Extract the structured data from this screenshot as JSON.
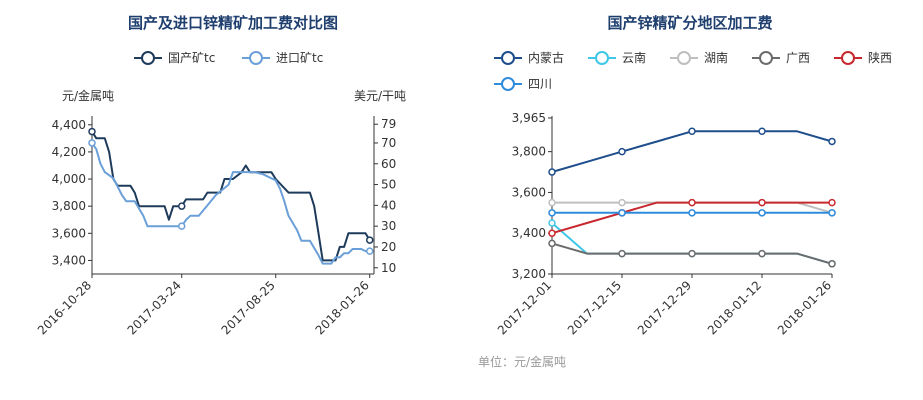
{
  "chart_data": [
    {
      "type": "line",
      "title": "国产及进口锌精矿加工费对比图",
      "ylabel": "元/金属吨",
      "y2label": "美元/干吨",
      "ylim": [
        3300,
        4450
      ],
      "y2lim": [
        7,
        82
      ],
      "yticks": [
        3400,
        3600,
        3800,
        4000,
        4200,
        4400
      ],
      "ytick_labels": [
        "3,400",
        "3,600",
        "3,800",
        "4,000",
        "4,200",
        "4,400"
      ],
      "y2ticks": [
        10,
        20,
        30,
        40,
        50,
        60,
        70,
        79
      ],
      "xlim": [
        "2016-10-28",
        "2018-02-02"
      ],
      "xticks": [
        "2016-10-28",
        "2017-03-24",
        "2017-08-25",
        "2018-01-26"
      ],
      "grid": false,
      "legend_position": "top-center",
      "series": [
        {
          "name": "国产矿tc",
          "color": "#1f3b5c",
          "axis": "left",
          "points": [
            [
              "2016-10-28",
              4350
            ],
            [
              "2016-11-04",
              4300
            ],
            [
              "2016-11-18",
              4300
            ],
            [
              "2016-11-25",
              4200
            ],
            [
              "2016-12-02",
              4000
            ],
            [
              "2016-12-09",
              3950
            ],
            [
              "2016-12-30",
              3950
            ],
            [
              "2017-01-06",
              3900
            ],
            [
              "2017-01-13",
              3800
            ],
            [
              "2017-02-24",
              3800
            ],
            [
              "2017-03-03",
              3700
            ],
            [
              "2017-03-10",
              3800
            ],
            [
              "2017-03-24",
              3800
            ],
            [
              "2017-03-31",
              3850
            ],
            [
              "2017-04-28",
              3850
            ],
            [
              "2017-05-05",
              3900
            ],
            [
              "2017-05-26",
              3900
            ],
            [
              "2017-06-02",
              4000
            ],
            [
              "2017-06-16",
              4000
            ],
            [
              "2017-06-30",
              4050
            ],
            [
              "2017-07-07",
              4100
            ],
            [
              "2017-07-14",
              4050
            ],
            [
              "2017-08-18",
              4050
            ],
            [
              "2017-08-25",
              4000
            ],
            [
              "2017-09-15",
              3900
            ],
            [
              "2017-10-20",
              3900
            ],
            [
              "2017-10-27",
              3800
            ],
            [
              "2017-11-03",
              3600
            ],
            [
              "2017-11-10",
              3400
            ],
            [
              "2017-12-01",
              3400
            ],
            [
              "2017-12-08",
              3500
            ],
            [
              "2017-12-15",
              3500
            ],
            [
              "2017-12-22",
              3600
            ],
            [
              "2018-01-19",
              3600
            ],
            [
              "2018-01-26",
              3550
            ]
          ]
        },
        {
          "name": "进口矿tc",
          "color": "#6a9fd8",
          "axis": "right",
          "points": [
            [
              "2016-10-28",
              70
            ],
            [
              "2016-11-04",
              67
            ],
            [
              "2016-11-11",
              60
            ],
            [
              "2016-11-18",
              56
            ],
            [
              "2016-12-02",
              53
            ],
            [
              "2016-12-16",
              45
            ],
            [
              "2016-12-23",
              42
            ],
            [
              "2017-01-06",
              42
            ],
            [
              "2017-01-20",
              35
            ],
            [
              "2017-01-27",
              30
            ],
            [
              "2017-03-24",
              30
            ],
            [
              "2017-03-31",
              33
            ],
            [
              "2017-04-07",
              35
            ],
            [
              "2017-04-21",
              35
            ],
            [
              "2017-05-05",
              40
            ],
            [
              "2017-05-19",
              45
            ],
            [
              "2017-06-09",
              50
            ],
            [
              "2017-06-16",
              56
            ],
            [
              "2017-07-21",
              56
            ],
            [
              "2017-08-04",
              55
            ],
            [
              "2017-08-25",
              52
            ],
            [
              "2017-09-01",
              48
            ],
            [
              "2017-09-08",
              42
            ],
            [
              "2017-09-15",
              35
            ],
            [
              "2017-09-29",
              28
            ],
            [
              "2017-10-06",
              23
            ],
            [
              "2017-10-20",
              23
            ],
            [
              "2017-11-03",
              16
            ],
            [
              "2017-11-10",
              12
            ],
            [
              "2017-11-24",
              12
            ],
            [
              "2017-12-01",
              15
            ],
            [
              "2017-12-08",
              15
            ],
            [
              "2017-12-15",
              17
            ],
            [
              "2017-12-22",
              17
            ],
            [
              "2017-12-29",
              19
            ],
            [
              "2018-01-12",
              19
            ],
            [
              "2018-01-19",
              18
            ],
            [
              "2018-01-26",
              18
            ]
          ]
        }
      ]
    },
    {
      "type": "line",
      "title": "国产锌精矿分地区加工费",
      "ylim": [
        3200,
        3965
      ],
      "yticks": [
        3200,
        3400,
        3600,
        3800,
        3965
      ],
      "ytick_labels": [
        "3,200",
        "3,400",
        "3,600",
        "3,800",
        "3,965"
      ],
      "x": [
        "2017-12-01",
        "2017-12-08",
        "2017-12-15",
        "2017-12-22",
        "2017-12-29",
        "2018-01-05",
        "2018-01-12",
        "2018-01-19",
        "2018-01-26"
      ],
      "xticks": [
        "2017-12-01",
        "2017-12-15",
        "2017-12-29",
        "2018-01-12",
        "2018-01-26"
      ],
      "grid": false,
      "legend_position": "top-left",
      "note": "单位：元/金属吨",
      "series": [
        {
          "name": "内蒙古",
          "color": "#1f4e8c",
          "values": [
            3700,
            3750,
            3800,
            3850,
            3900,
            3900,
            3900,
            3900,
            3850
          ]
        },
        {
          "name": "云南",
          "color": "#3ec7e6",
          "values": [
            3450,
            3300,
            3300,
            3300,
            3300,
            3300,
            3300,
            3300,
            3250
          ]
        },
        {
          "name": "湖南",
          "color": "#bfbfbf",
          "values": [
            3550,
            3550,
            3550,
            3550,
            3550,
            3550,
            3550,
            3550,
            3500
          ]
        },
        {
          "name": "广西",
          "color": "#6b6b6b",
          "values": [
            3350,
            3300,
            3300,
            3300,
            3300,
            3300,
            3300,
            3300,
            3250
          ]
        },
        {
          "name": "陕西",
          "color": "#c8282e",
          "values": [
            3400,
            3450,
            3500,
            3550,
            3550,
            3550,
            3550,
            3550,
            3550
          ]
        },
        {
          "name": "四川",
          "color": "#2f8bdc",
          "values": [
            3500,
            3500,
            3500,
            3500,
            3500,
            3500,
            3500,
            3500,
            3500
          ]
        }
      ]
    }
  ]
}
